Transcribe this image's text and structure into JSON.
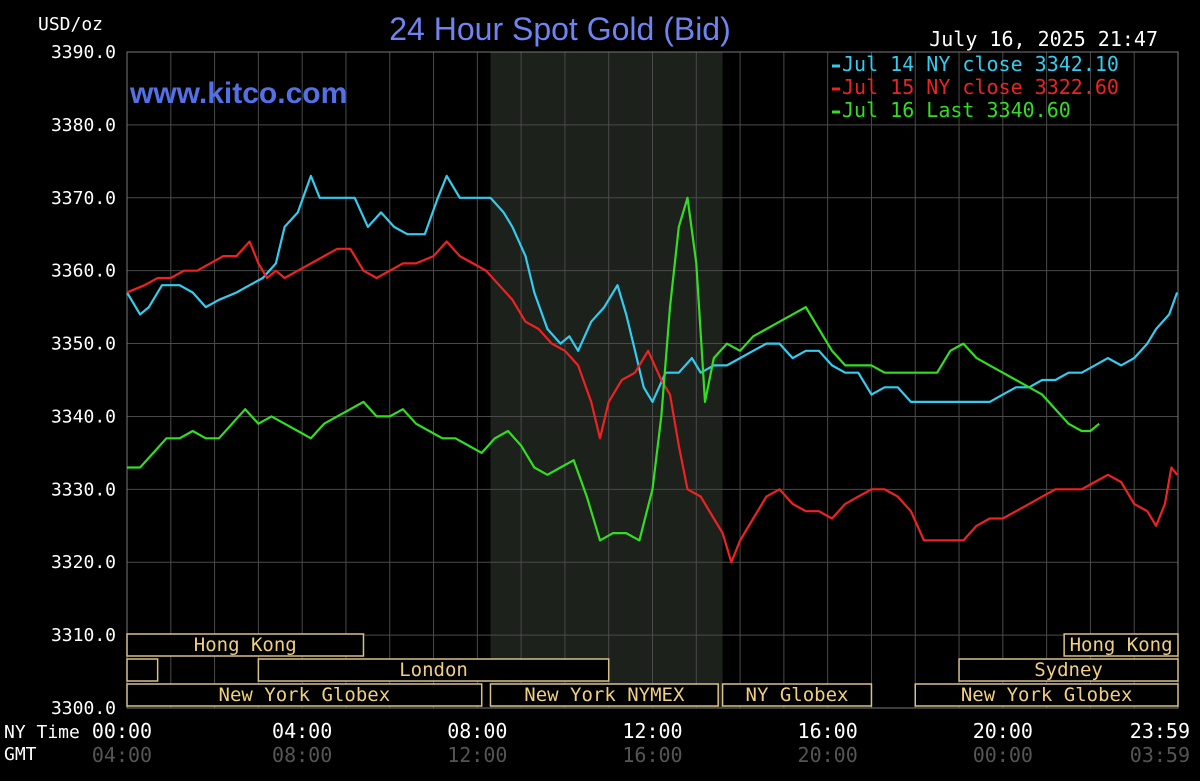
{
  "chart_data": {
    "type": "line",
    "title": "24 Hour Spot Gold (Bid)",
    "ylabel": "USD/oz",
    "watermark": "www.kitco.com",
    "timestamp": "July 16, 2025 21:47",
    "ylim": [
      3300,
      3390
    ],
    "yticks": [
      "3390.0",
      "3380.0",
      "3370.0",
      "3360.0",
      "3350.0",
      "3340.0",
      "3330.0",
      "3320.0",
      "3310.0",
      "3300.0"
    ],
    "xlim": [
      0,
      24
    ],
    "x_row_labels": {
      "ny": "NY Time",
      "gmt": "GMT"
    },
    "x_ticks_ny": [
      "00:00",
      "04:00",
      "08:00",
      "12:00",
      "16:00",
      "20:00",
      "23:59"
    ],
    "x_ticks_gmt": [
      "04:00",
      "08:00",
      "12:00",
      "16:00",
      "20:00",
      "00:00",
      "03:59"
    ],
    "shaded_region_hours": [
      8.3,
      13.6
    ],
    "legend_position": "top-right",
    "series": [
      {
        "name": "Jul 14 NY close 3342.10",
        "color": "#33ccee",
        "points": [
          [
            0,
            3357
          ],
          [
            0.3,
            3354
          ],
          [
            0.5,
            3355
          ],
          [
            0.8,
            3358
          ],
          [
            1.2,
            3358
          ],
          [
            1.5,
            3357
          ],
          [
            1.8,
            3355
          ],
          [
            2.1,
            3356
          ],
          [
            2.5,
            3357
          ],
          [
            2.8,
            3358
          ],
          [
            3.1,
            3359
          ],
          [
            3.4,
            3361
          ],
          [
            3.6,
            3366
          ],
          [
            3.9,
            3368
          ],
          [
            4.2,
            3373
          ],
          [
            4.4,
            3370
          ],
          [
            4.8,
            3370
          ],
          [
            5.2,
            3370
          ],
          [
            5.5,
            3366
          ],
          [
            5.8,
            3368
          ],
          [
            6.1,
            3366
          ],
          [
            6.4,
            3365
          ],
          [
            6.8,
            3365
          ],
          [
            7.1,
            3370
          ],
          [
            7.3,
            3373
          ],
          [
            7.6,
            3370
          ],
          [
            8.0,
            3370
          ],
          [
            8.3,
            3370
          ],
          [
            8.6,
            3368
          ],
          [
            8.8,
            3366
          ],
          [
            9.1,
            3362
          ],
          [
            9.3,
            3357
          ],
          [
            9.6,
            3352
          ],
          [
            9.9,
            3350
          ],
          [
            10.1,
            3351
          ],
          [
            10.3,
            3349
          ],
          [
            10.6,
            3353
          ],
          [
            10.9,
            3355
          ],
          [
            11.2,
            3358
          ],
          [
            11.4,
            3354
          ],
          [
            11.6,
            3349
          ],
          [
            11.8,
            3344
          ],
          [
            12.0,
            3342
          ],
          [
            12.3,
            3346
          ],
          [
            12.6,
            3346
          ],
          [
            12.9,
            3348
          ],
          [
            13.1,
            3346
          ],
          [
            13.4,
            3347
          ],
          [
            13.7,
            3347
          ],
          [
            14.0,
            3348
          ],
          [
            14.3,
            3349
          ],
          [
            14.6,
            3350
          ],
          [
            14.9,
            3350
          ],
          [
            15.2,
            3348
          ],
          [
            15.5,
            3349
          ],
          [
            15.8,
            3349
          ],
          [
            16.1,
            3347
          ],
          [
            16.4,
            3346
          ],
          [
            16.7,
            3346
          ],
          [
            17.0,
            3343
          ],
          [
            17.3,
            3344
          ],
          [
            17.6,
            3344
          ],
          [
            17.9,
            3342
          ],
          [
            18.2,
            3342
          ],
          [
            18.5,
            3342
          ],
          [
            18.8,
            3342
          ],
          [
            19.1,
            3342
          ],
          [
            19.4,
            3342
          ],
          [
            19.7,
            3342
          ],
          [
            20.0,
            3343
          ],
          [
            20.3,
            3344
          ],
          [
            20.6,
            3344
          ],
          [
            20.9,
            3345
          ],
          [
            21.2,
            3345
          ],
          [
            21.5,
            3346
          ],
          [
            21.8,
            3346
          ],
          [
            22.1,
            3347
          ],
          [
            22.4,
            3348
          ],
          [
            22.7,
            3347
          ],
          [
            23.0,
            3348
          ],
          [
            23.3,
            3350
          ],
          [
            23.5,
            3352
          ],
          [
            23.8,
            3354
          ],
          [
            23.98,
            3357
          ]
        ]
      },
      {
        "name": "Jul 15 NY close 3322.60",
        "color": "#ee2222",
        "points": [
          [
            0,
            3357
          ],
          [
            0.4,
            3358
          ],
          [
            0.7,
            3359
          ],
          [
            1.0,
            3359
          ],
          [
            1.3,
            3360
          ],
          [
            1.6,
            3360
          ],
          [
            1.9,
            3361
          ],
          [
            2.2,
            3362
          ],
          [
            2.5,
            3362
          ],
          [
            2.8,
            3364
          ],
          [
            3.0,
            3361
          ],
          [
            3.2,
            3359
          ],
          [
            3.4,
            3360
          ],
          [
            3.6,
            3359
          ],
          [
            3.9,
            3360
          ],
          [
            4.2,
            3361
          ],
          [
            4.5,
            3362
          ],
          [
            4.8,
            3363
          ],
          [
            5.1,
            3363
          ],
          [
            5.4,
            3360
          ],
          [
            5.7,
            3359
          ],
          [
            6.0,
            3360
          ],
          [
            6.3,
            3361
          ],
          [
            6.6,
            3361
          ],
          [
            7.0,
            3362
          ],
          [
            7.3,
            3364
          ],
          [
            7.6,
            3362
          ],
          [
            7.9,
            3361
          ],
          [
            8.2,
            3360
          ],
          [
            8.5,
            3358
          ],
          [
            8.8,
            3356
          ],
          [
            9.1,
            3353
          ],
          [
            9.4,
            3352
          ],
          [
            9.7,
            3350
          ],
          [
            10.0,
            3349
          ],
          [
            10.3,
            3347
          ],
          [
            10.6,
            3342
          ],
          [
            10.8,
            3337
          ],
          [
            11.0,
            3342
          ],
          [
            11.3,
            3345
          ],
          [
            11.6,
            3346
          ],
          [
            11.9,
            3349
          ],
          [
            12.2,
            3345
          ],
          [
            12.4,
            3343
          ],
          [
            12.6,
            3336
          ],
          [
            12.8,
            3330
          ],
          [
            13.1,
            3329
          ],
          [
            13.4,
            3326
          ],
          [
            13.6,
            3324
          ],
          [
            13.8,
            3320
          ],
          [
            14.0,
            3323
          ],
          [
            14.3,
            3326
          ],
          [
            14.6,
            3329
          ],
          [
            14.9,
            3330
          ],
          [
            15.2,
            3328
          ],
          [
            15.5,
            3327
          ],
          [
            15.8,
            3327
          ],
          [
            16.1,
            3326
          ],
          [
            16.4,
            3328
          ],
          [
            16.7,
            3329
          ],
          [
            17.0,
            3330
          ],
          [
            17.3,
            3330
          ],
          [
            17.6,
            3329
          ],
          [
            17.9,
            3327
          ],
          [
            18.2,
            3323
          ],
          [
            18.5,
            3323
          ],
          [
            18.8,
            3323
          ],
          [
            19.1,
            3323
          ],
          [
            19.4,
            3325
          ],
          [
            19.7,
            3326
          ],
          [
            20.0,
            3326
          ],
          [
            20.3,
            3327
          ],
          [
            20.6,
            3328
          ],
          [
            20.9,
            3329
          ],
          [
            21.2,
            3330
          ],
          [
            21.5,
            3330
          ],
          [
            21.8,
            3330
          ],
          [
            22.1,
            3331
          ],
          [
            22.4,
            3332
          ],
          [
            22.7,
            3331
          ],
          [
            23.0,
            3328
          ],
          [
            23.3,
            3327
          ],
          [
            23.5,
            3325
          ],
          [
            23.7,
            3328
          ],
          [
            23.85,
            3333
          ],
          [
            23.98,
            3332
          ]
        ]
      },
      {
        "name": "Jul 16 Last 3340.60",
        "color": "#33dd22",
        "points": [
          [
            0,
            3333
          ],
          [
            0.3,
            3333
          ],
          [
            0.6,
            3335
          ],
          [
            0.9,
            3337
          ],
          [
            1.2,
            3337
          ],
          [
            1.5,
            3338
          ],
          [
            1.8,
            3337
          ],
          [
            2.1,
            3337
          ],
          [
            2.4,
            3339
          ],
          [
            2.7,
            3341
          ],
          [
            3.0,
            3339
          ],
          [
            3.3,
            3340
          ],
          [
            3.6,
            3339
          ],
          [
            3.9,
            3338
          ],
          [
            4.2,
            3337
          ],
          [
            4.5,
            3339
          ],
          [
            4.8,
            3340
          ],
          [
            5.1,
            3341
          ],
          [
            5.4,
            3342
          ],
          [
            5.7,
            3340
          ],
          [
            6.0,
            3340
          ],
          [
            6.3,
            3341
          ],
          [
            6.6,
            3339
          ],
          [
            6.9,
            3338
          ],
          [
            7.2,
            3337
          ],
          [
            7.5,
            3337
          ],
          [
            7.8,
            3336
          ],
          [
            8.1,
            3335
          ],
          [
            8.4,
            3337
          ],
          [
            8.7,
            3338
          ],
          [
            9.0,
            3336
          ],
          [
            9.3,
            3333
          ],
          [
            9.6,
            3332
          ],
          [
            9.9,
            3333
          ],
          [
            10.2,
            3334
          ],
          [
            10.5,
            3329
          ],
          [
            10.8,
            3323
          ],
          [
            11.1,
            3324
          ],
          [
            11.4,
            3324
          ],
          [
            11.7,
            3323
          ],
          [
            12.0,
            3330
          ],
          [
            12.2,
            3340
          ],
          [
            12.4,
            3355
          ],
          [
            12.6,
            3366
          ],
          [
            12.8,
            3370
          ],
          [
            13.0,
            3361
          ],
          [
            13.2,
            3342
          ],
          [
            13.4,
            3348
          ],
          [
            13.7,
            3350
          ],
          [
            14.0,
            3349
          ],
          [
            14.3,
            3351
          ],
          [
            14.6,
            3352
          ],
          [
            14.9,
            3353
          ],
          [
            15.2,
            3354
          ],
          [
            15.5,
            3355
          ],
          [
            15.8,
            3352
          ],
          [
            16.1,
            3349
          ],
          [
            16.4,
            3347
          ],
          [
            16.7,
            3347
          ],
          [
            17.0,
            3347
          ],
          [
            17.3,
            3346
          ],
          [
            17.6,
            3346
          ],
          [
            17.9,
            3346
          ],
          [
            18.2,
            3346
          ],
          [
            18.5,
            3346
          ],
          [
            18.8,
            3349
          ],
          [
            19.1,
            3350
          ],
          [
            19.4,
            3348
          ],
          [
            19.7,
            3347
          ],
          [
            20.0,
            3346
          ],
          [
            20.3,
            3345
          ],
          [
            20.6,
            3344
          ],
          [
            20.9,
            3343
          ],
          [
            21.2,
            3341
          ],
          [
            21.5,
            3339
          ],
          [
            21.8,
            3338
          ],
          [
            22.0,
            3338
          ],
          [
            22.2,
            3339
          ]
        ]
      }
    ],
    "sessions": [
      {
        "label": "Hong Kong",
        "start": 0,
        "end": 5.4,
        "row": 0,
        "labelled": true
      },
      {
        "label": "Hong Kong",
        "start": 21.4,
        "end": 24,
        "row": 0,
        "labelled": true
      },
      {
        "label": "",
        "start": 0,
        "end": 0.7,
        "row": 1,
        "labelled": false
      },
      {
        "label": "London",
        "start": 3.0,
        "end": 11.0,
        "row": 1,
        "labelled": true
      },
      {
        "label": "Sydney",
        "start": 19.0,
        "end": 24,
        "row": 1,
        "labelled": true
      },
      {
        "label": "New York Globex",
        "start": 0,
        "end": 8.1,
        "row": 2,
        "labelled": true
      },
      {
        "label": "New York NYMEX",
        "start": 8.3,
        "end": 13.5,
        "row": 2,
        "labelled": true
      },
      {
        "label": "NY Globex",
        "start": 13.6,
        "end": 17.0,
        "row": 2,
        "labelled": true
      },
      {
        "label": "New York Globex",
        "start": 18.0,
        "end": 24,
        "row": 2,
        "labelled": true
      }
    ]
  }
}
